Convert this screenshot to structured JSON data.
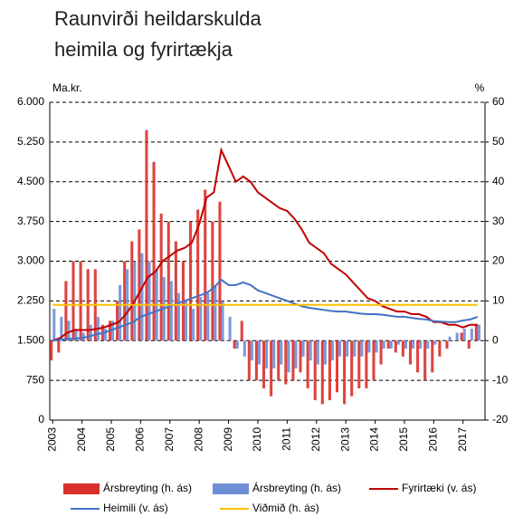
{
  "chart_data": {
    "type": "combo",
    "title_lines": [
      "Raunvirði heildarskulda",
      "heimila og fyrirtækja"
    ],
    "y_label": "Ma.kr.",
    "y2_label": "%",
    "x": [
      2003,
      2003.25,
      2003.5,
      2003.75,
      2004,
      2004.25,
      2004.5,
      2004.75,
      2005,
      2005.25,
      2005.5,
      2005.75,
      2006,
      2006.25,
      2006.5,
      2006.75,
      2007,
      2007.25,
      2007.5,
      2007.75,
      2008,
      2008.25,
      2008.5,
      2008.75,
      2009,
      2009.25,
      2009.5,
      2009.75,
      2010,
      2010.25,
      2010.5,
      2010.75,
      2011,
      2011.25,
      2011.5,
      2011.75,
      2012,
      2012.25,
      2012.5,
      2012.75,
      2013,
      2013.25,
      2013.5,
      2013.75,
      2014,
      2014.25,
      2014.5,
      2014.75,
      2015,
      2015.25,
      2015.5,
      2015.75,
      2016,
      2016.25,
      2016.5,
      2016.75,
      2017,
      2017.25,
      2017.5
    ],
    "xlim": [
      2002.9,
      2017.75
    ],
    "xticks": [
      2003,
      2004,
      2005,
      2006,
      2007,
      2008,
      2009,
      2010,
      2011,
      2012,
      2013,
      2014,
      2015,
      2016,
      2017
    ],
    "ylim": [
      0,
      6000
    ],
    "yticks": [
      0,
      750,
      {
        "value": 1500,
        "label": "1.500"
      },
      {
        "value": 2250,
        "label": "2.250"
      },
      {
        "value": 3000,
        "label": "3.000"
      },
      {
        "value": 3750,
        "label": "3.750"
      },
      {
        "value": 4500,
        "label": "4.500"
      },
      {
        "value": 5250,
        "label": "5.250"
      },
      {
        "value": 6000,
        "label": "6.000"
      }
    ],
    "y2lim": [
      -20,
      60
    ],
    "y2ticks": [
      -20,
      -10,
      0,
      10,
      20,
      30,
      40,
      50,
      60
    ],
    "grid": true,
    "series": [
      {
        "name": "Ársbreyting (h. ás)",
        "kind": "bar",
        "axis": "y2",
        "color": "#d9302c",
        "values": [
          -5,
          -3,
          15,
          20,
          20,
          18,
          18,
          4,
          5,
          10,
          20,
          25,
          28,
          53,
          45,
          32,
          30,
          25,
          20,
          30,
          33,
          38,
          30,
          35,
          0,
          -2,
          5,
          -10,
          -10,
          -12,
          -14,
          -10,
          -11,
          -10,
          -8,
          -12,
          -15,
          -16,
          -15,
          -13,
          -16,
          -14,
          -12,
          -12,
          -10,
          -6,
          -2,
          -3,
          -4,
          -6,
          -8,
          -10,
          -8,
          -4,
          -2,
          0,
          2,
          -2,
          4
        ]
      },
      {
        "name": "Ársbreyting (h. ás)",
        "kind": "bar",
        "axis": "y2",
        "color": "#6e8fd6",
        "values": [
          8,
          6,
          5,
          3,
          2,
          4,
          6,
          3,
          5,
          14,
          18,
          20,
          22,
          20,
          18,
          16,
          15,
          12,
          10,
          8,
          11,
          12,
          14,
          10,
          6,
          -2,
          -4,
          -5,
          -6,
          -7,
          -7,
          -6,
          -8,
          -7,
          -4,
          -5,
          -6,
          -6,
          -5,
          -4,
          -4,
          -4,
          -4,
          -3,
          -3,
          -2,
          -2,
          -1,
          -2,
          -2,
          -2,
          -2,
          -1,
          0,
          1,
          2,
          3,
          3,
          4
        ]
      },
      {
        "name": "Fyrirtæki (v. ás)",
        "kind": "line",
        "color": "#c00000",
        "values": [
          1500,
          1550,
          1650,
          1700,
          1700,
          1700,
          1720,
          1750,
          1800,
          1850,
          2000,
          2200,
          2450,
          2700,
          2800,
          3000,
          3100,
          3200,
          3250,
          3350,
          3700,
          4200,
          4300,
          5100,
          4800,
          4500,
          4600,
          4500,
          4300,
          4200,
          4100,
          4000,
          3950,
          3800,
          3600,
          3350,
          3250,
          3150,
          2950,
          2850,
          2750,
          2600,
          2450,
          2300,
          2250,
          2150,
          2100,
          2050,
          2050,
          2000,
          2000,
          1950,
          1850,
          1850,
          1800,
          1800,
          1750,
          1800,
          1800
        ]
      },
      {
        "name": "Heimili (v. ás)",
        "kind": "line",
        "color": "#4472c4",
        "values": [
          1500,
          1520,
          1530,
          1540,
          1550,
          1580,
          1620,
          1650,
          1700,
          1750,
          1800,
          1850,
          1950,
          2000,
          2050,
          2100,
          2150,
          2200,
          2250,
          2300,
          2350,
          2400,
          2500,
          2650,
          2550,
          2550,
          2600,
          2550,
          2450,
          2400,
          2350,
          2300,
          2250,
          2200,
          2150,
          2120,
          2100,
          2080,
          2060,
          2050,
          2050,
          2030,
          2010,
          2000,
          2000,
          1990,
          1970,
          1950,
          1950,
          1930,
          1910,
          1900,
          1870,
          1860,
          1850,
          1850,
          1880,
          1900,
          1950
        ]
      },
      {
        "name": "Viðmið (h. ás)",
        "kind": "line",
        "axis": "y2",
        "color": "#ffc000",
        "values": [
          9,
          9,
          9,
          9,
          9,
          9,
          9,
          9,
          9,
          9,
          9,
          9,
          9,
          9,
          9,
          9,
          9,
          9,
          9,
          9,
          9,
          9,
          9,
          9,
          9,
          9,
          9,
          9,
          9,
          9,
          9,
          9,
          9,
          9,
          9,
          9,
          9,
          9,
          9,
          9,
          9,
          9,
          9,
          9,
          9,
          9,
          9,
          9,
          9,
          9,
          9,
          9,
          9,
          9,
          9,
          9,
          9,
          9,
          9
        ]
      }
    ]
  }
}
